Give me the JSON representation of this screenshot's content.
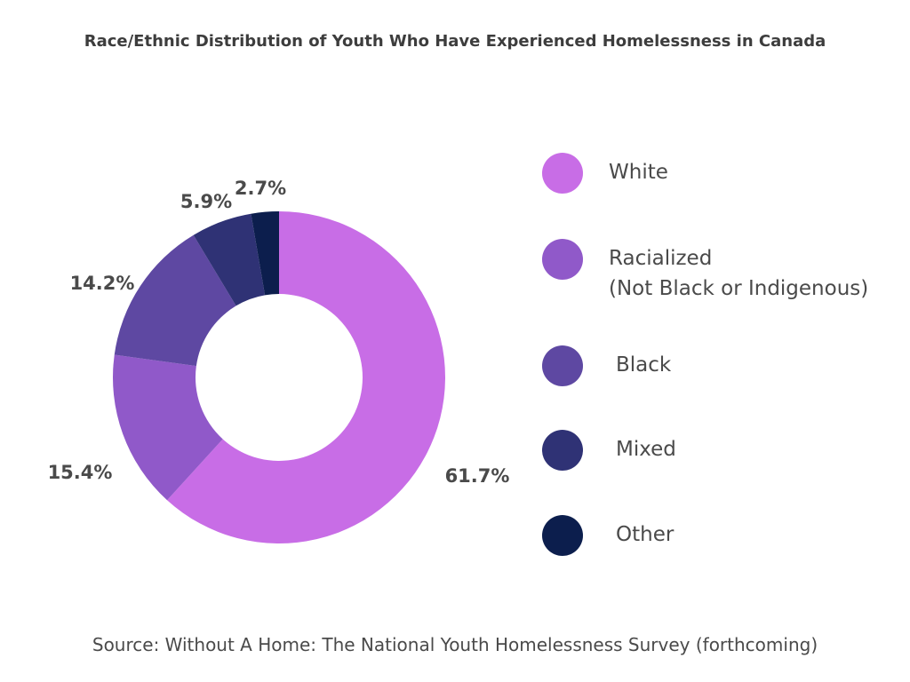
{
  "chart_data": {
    "type": "pie",
    "title": "Race/Ethnic Distribution of Youth Who Have Experienced Homelessness in Canada",
    "source": "Source: Without A Home: The National Youth Homelessness Survey (forthcoming)",
    "slices": [
      {
        "label": "White",
        "value": 61.7,
        "value_label": "61.7%",
        "color": "#c86de6"
      },
      {
        "label": "Racialized\n(Not Black or Indigenous)",
        "value": 15.4,
        "value_label": "15.4%",
        "color": "#9059c9"
      },
      {
        "label": "Black",
        "value": 14.2,
        "value_label": "14.2%",
        "color": "#5e48a2"
      },
      {
        "label": "Mixed",
        "value": 5.9,
        "value_label": "5.9%",
        "color": "#2f3275"
      },
      {
        "label": "Other",
        "value": 2.7,
        "value_label": "2.7%",
        "color": "#0c1e4d"
      }
    ],
    "legend_position": "right"
  }
}
